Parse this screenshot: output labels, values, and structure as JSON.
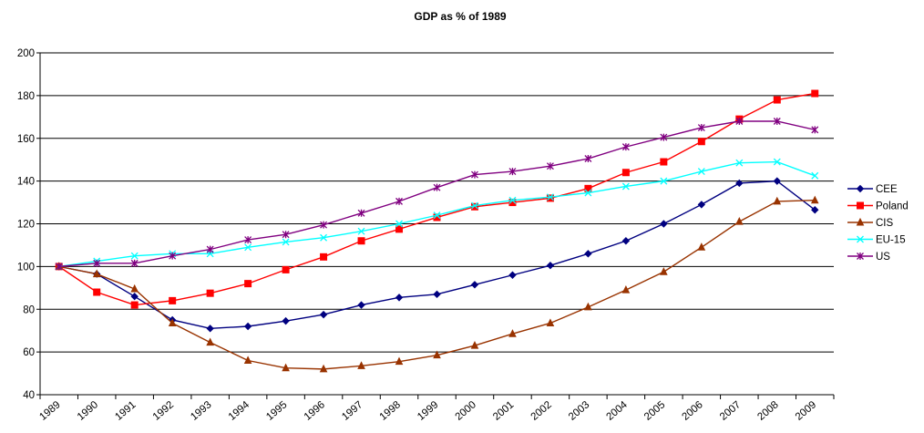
{
  "chart_data": {
    "type": "line",
    "title": "GDP as % of 1989",
    "xlabel": "",
    "ylabel": "",
    "x": [
      "1989",
      "1990",
      "1991",
      "1992",
      "1993",
      "1994",
      "1995",
      "1996",
      "1997",
      "1998",
      "1999",
      "2000",
      "2001",
      "2002",
      "2003",
      "2004",
      "2005",
      "2006",
      "2007",
      "2008",
      "2009"
    ],
    "ylim": [
      40,
      200
    ],
    "yticks": [
      40,
      60,
      80,
      100,
      120,
      140,
      160,
      180,
      200
    ],
    "grid": "horizontal",
    "legend_position": "right",
    "series": [
      {
        "name": "CEE",
        "color": "#000080",
        "marker": "diamond",
        "values": [
          100,
          96.5,
          86,
          75,
          71,
          72,
          74.5,
          77.5,
          82,
          85.5,
          87,
          91.5,
          96,
          100.5,
          106,
          112,
          120,
          129,
          139,
          140,
          126.5
        ]
      },
      {
        "name": "Poland",
        "color": "#FF0000",
        "marker": "square",
        "values": [
          100,
          88,
          82,
          84,
          87.5,
          92,
          98.5,
          104.5,
          112,
          117.5,
          123,
          128,
          130,
          132,
          136.5,
          144,
          149,
          158.5,
          169,
          178,
          181
        ]
      },
      {
        "name": "CIS",
        "color": "#993300",
        "marker": "triangle",
        "values": [
          100,
          96.5,
          89.5,
          73.5,
          64.5,
          56,
          52.5,
          52,
          53.5,
          55.5,
          58.5,
          63,
          68.5,
          73.5,
          81,
          89,
          97.5,
          109,
          121,
          130.5,
          131
        ]
      },
      {
        "name": "EU-15",
        "color": "#00FFFF",
        "marker": "x",
        "values": [
          100,
          102.5,
          105,
          106,
          106,
          109,
          111.5,
          113.5,
          116.5,
          120,
          124,
          128.5,
          131,
          132.5,
          134.5,
          137.5,
          140,
          144.5,
          148.5,
          149,
          142.5
        ]
      },
      {
        "name": "US",
        "color": "#800080",
        "marker": "star",
        "values": [
          100,
          101.5,
          101.5,
          105,
          108,
          112.5,
          115,
          119.5,
          125,
          130.5,
          137,
          143,
          144.5,
          147,
          150.5,
          156,
          160.5,
          165,
          168,
          168,
          164
        ]
      }
    ]
  }
}
